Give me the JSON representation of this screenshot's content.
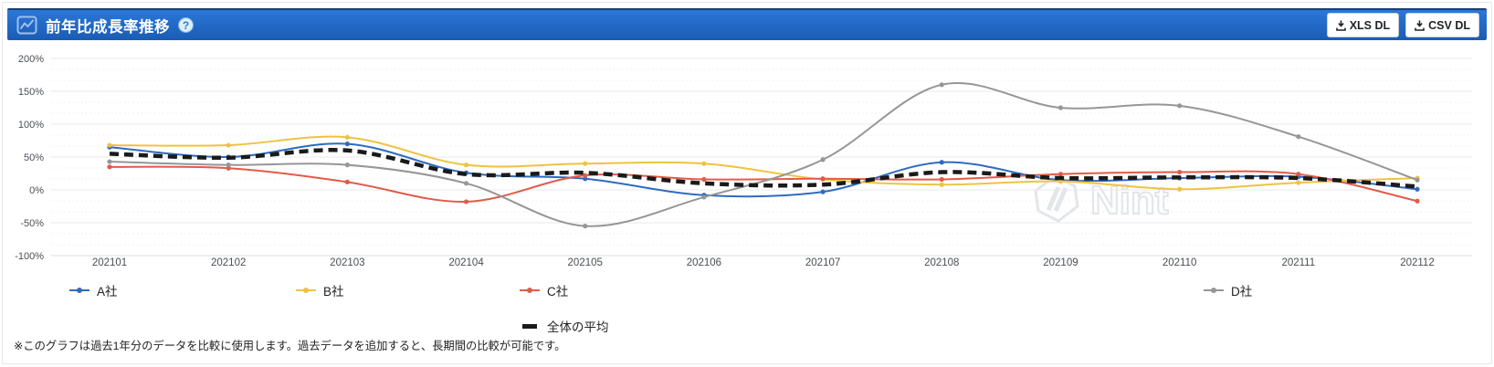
{
  "header": {
    "title": "前年比成長率推移",
    "help_glyph": "?",
    "buttons": [
      {
        "label": "XLS DL"
      },
      {
        "label": "CSV DL"
      }
    ]
  },
  "watermark": {
    "text": "Nint"
  },
  "footnote": "※このグラフは過去1年分のデータを比較に使用します。過去データを追加すると、長期間の比較が可能です。",
  "chart_data": {
    "type": "line",
    "title": "前年比成長率推移",
    "categories": [
      "202101",
      "202102",
      "202103",
      "202104",
      "202105",
      "202106",
      "202107",
      "202108",
      "202109",
      "202110",
      "202111",
      "202112"
    ],
    "series": [
      {
        "name": "A社",
        "color": "#2e6bc0",
        "style": "solid",
        "values": [
          65,
          50,
          70,
          26,
          17,
          -8,
          -3,
          42,
          15,
          18,
          20,
          1
        ]
      },
      {
        "name": "B社",
        "color": "#eec341",
        "style": "solid",
        "values": [
          68,
          68,
          80,
          38,
          40,
          40,
          16,
          8,
          13,
          1,
          11,
          18
        ]
      },
      {
        "name": "C社",
        "color": "#e25b49",
        "style": "solid",
        "values": [
          35,
          33,
          12,
          -18,
          22,
          16,
          17,
          16,
          24,
          27,
          24,
          -17
        ]
      },
      {
        "name": "D社",
        "color": "#969696",
        "style": "solid",
        "values": [
          43,
          38,
          38,
          10,
          -55,
          -11,
          46,
          160,
          125,
          128,
          81,
          15
        ]
      },
      {
        "name": "全体の平均",
        "color": "#1a1a1a",
        "style": "dashed",
        "values": [
          55,
          49,
          60,
          24,
          26,
          10,
          8,
          27,
          18,
          19,
          18,
          5
        ]
      }
    ],
    "y_ticks": [
      200,
      150,
      100,
      50,
      0,
      -50,
      -100
    ],
    "y_tick_labels": [
      "200%",
      "150%",
      "100%",
      "50%",
      "0%",
      "-50%",
      "-100%"
    ],
    "ylim": [
      -100,
      200
    ],
    "grid": "horizontal-only",
    "legend_position": "bottom"
  }
}
